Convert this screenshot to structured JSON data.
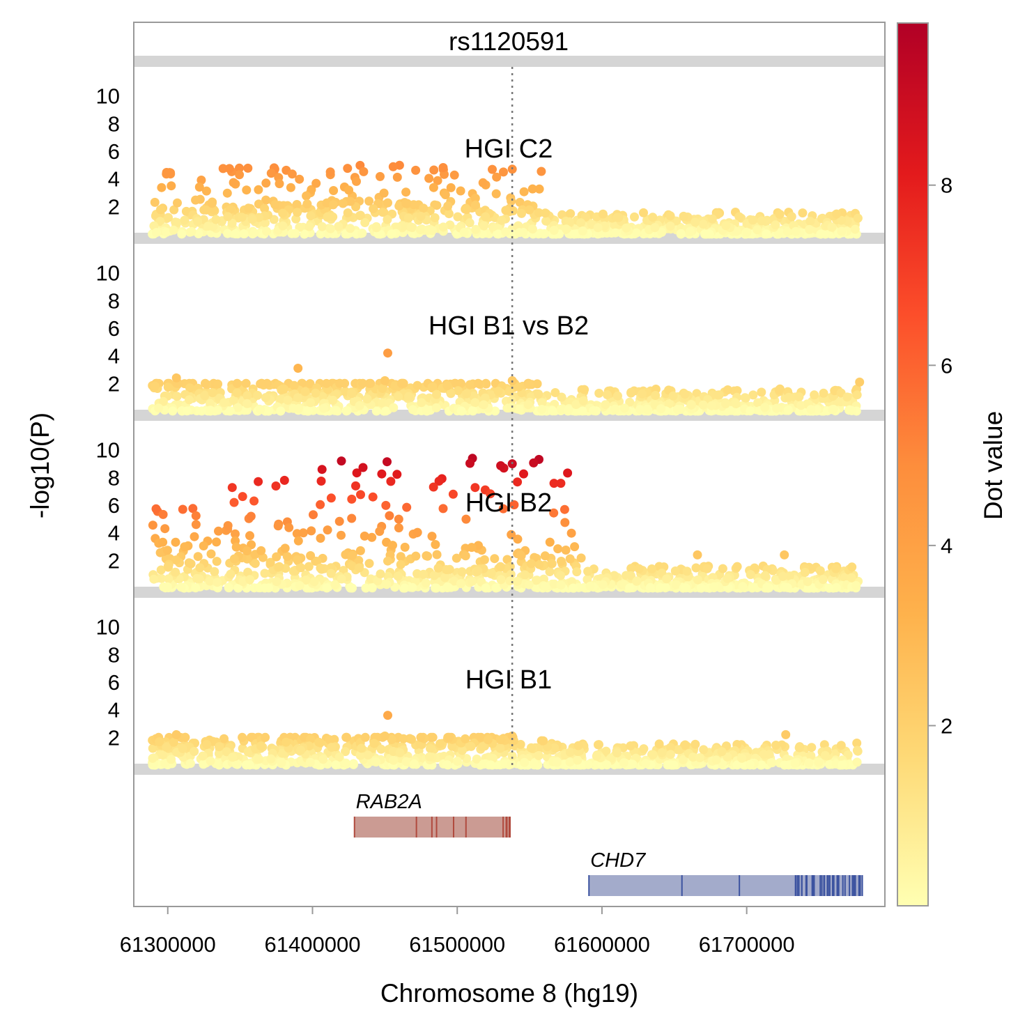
{
  "chart_data": {
    "type": "scatter",
    "lead_snp": "rs1120591",
    "xlabel": "Chromosome 8 (hg19)",
    "ylabel": "-log10(P)",
    "xlim": [
      61277000,
      61795000
    ],
    "ylim": [
      0,
      11.5
    ],
    "x_ticks": [
      {
        "value": 61300000,
        "label": "61300000"
      },
      {
        "value": 61400000,
        "label": "61400000"
      },
      {
        "value": 61500000,
        "label": "61500000"
      },
      {
        "value": 61600000,
        "label": "61600000"
      },
      {
        "value": 61700000,
        "label": "61700000"
      }
    ],
    "y_ticks": [
      {
        "value": 2,
        "label": "2"
      },
      {
        "value": 4,
        "label": "4"
      },
      {
        "value": 6,
        "label": "6"
      },
      {
        "value": 8,
        "label": "8"
      },
      {
        "value": 10,
        "label": "10"
      }
    ],
    "lead_snp_position": 61538000,
    "panels": [
      {
        "label": "HGI C2",
        "max_logp": 5,
        "cutoff": 61560000
      },
      {
        "label": "HGI B1 vs B2",
        "max_logp": 2,
        "cutoff": 61560000
      },
      {
        "label": "HGI B2",
        "max_logp": 9.5,
        "cutoff": 61590000
      },
      {
        "label": "HGI B1",
        "max_logp": 2,
        "cutoff": 61560000
      }
    ],
    "highlight_points": [
      {
        "panel": 0,
        "x": 61538000,
        "y": 4.7
      },
      {
        "panel": 1,
        "x": 61452000,
        "y": 4.2
      },
      {
        "panel": 1,
        "x": 61390000,
        "y": 3.1
      },
      {
        "panel": 1,
        "x": 61450000,
        "y": 2.2
      },
      {
        "panel": 1,
        "x": 61538000,
        "y": 2.2
      },
      {
        "panel": 1,
        "x": 61306000,
        "y": 2.4
      },
      {
        "panel": 1,
        "x": 61778000,
        "y": 2.1
      },
      {
        "panel": 2,
        "x": 61538000,
        "y": 9.0
      },
      {
        "panel": 2,
        "x": 61420000,
        "y": 9.2
      },
      {
        "panel": 2,
        "x": 61666000,
        "y": 2.4
      },
      {
        "panel": 2,
        "x": 61726000,
        "y": 2.4
      },
      {
        "panel": 3,
        "x": 61452000,
        "y": 3.6
      },
      {
        "panel": 3,
        "x": 61450000,
        "y": 2.1
      },
      {
        "panel": 3,
        "x": 61538000,
        "y": 2.1
      },
      {
        "panel": 3,
        "x": 61727000,
        "y": 2.2
      },
      {
        "panel": 3,
        "x": 61306000,
        "y": 2.2
      }
    ],
    "genes": [
      {
        "name": "RAB2A",
        "start": 61429000,
        "end": 61536000,
        "row": 0,
        "color": "#CB9B93",
        "exon_color": "#B04A3E"
      },
      {
        "name": "CHD7",
        "start": 61591000,
        "end": 61780000,
        "row": 1,
        "color": "#A3ABCB",
        "exon_color": "#3C53A0"
      }
    ],
    "colorbar": {
      "label": "Dot value",
      "min": 0,
      "max": 9.8,
      "ticks": [
        {
          "value": 2,
          "label": "2"
        },
        {
          "value": 4,
          "label": "4"
        },
        {
          "value": 6,
          "label": "6"
        },
        {
          "value": 8,
          "label": "8"
        }
      ],
      "colors": [
        "#FFFFB2",
        "#FED976",
        "#FEB24C",
        "#FD8D3C",
        "#FC4E2A",
        "#E31A1C",
        "#B10026"
      ]
    },
    "grid": false,
    "legend": "right"
  }
}
